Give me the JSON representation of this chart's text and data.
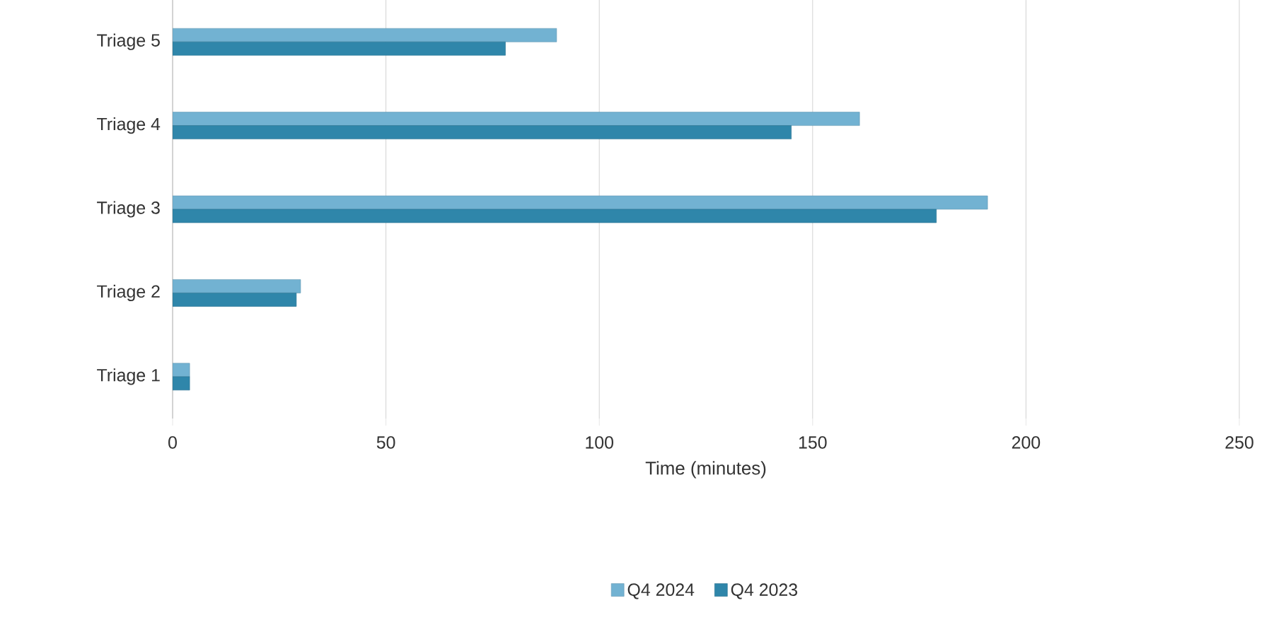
{
  "chart_data": {
    "type": "bar",
    "orientation": "horizontal",
    "xlabel": "Time (minutes)",
    "categories": [
      "Triage 5",
      "Triage 4",
      "Triage 3",
      "Triage 2",
      "Triage 1"
    ],
    "series": [
      {
        "name": "Q4 2024",
        "color": "#72b2d2",
        "values": [
          90,
          161,
          191,
          30,
          4
        ]
      },
      {
        "name": "Q4 2023",
        "color": "#2f86aa",
        "values": [
          78,
          145,
          179,
          29,
          4
        ]
      }
    ],
    "xlim": [
      0,
      250
    ],
    "xticks": [
      0,
      50,
      100,
      150,
      200,
      250
    ],
    "grid": "x",
    "legend": "bottom"
  }
}
